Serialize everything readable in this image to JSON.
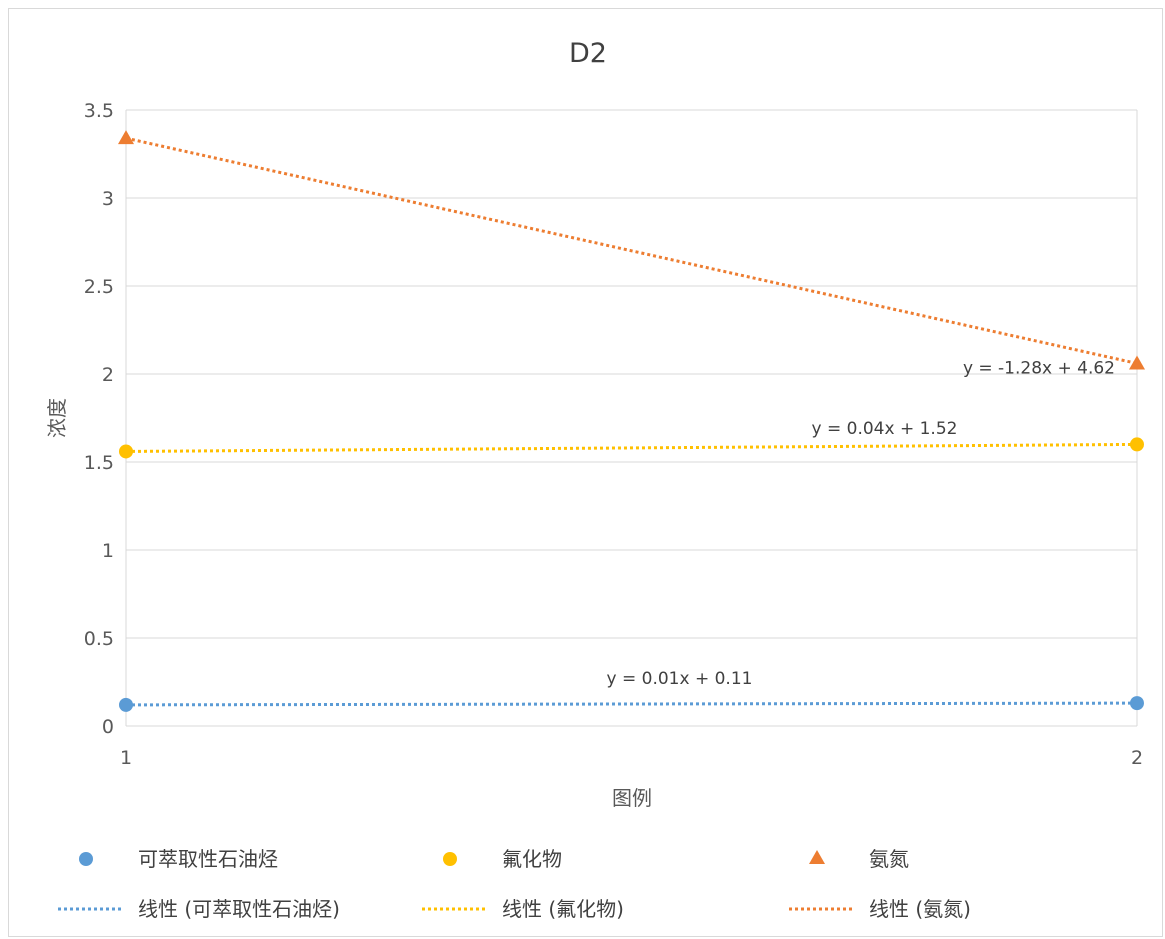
{
  "chart_data": {
    "type": "scatter",
    "title": "D2",
    "xlabel": "图例",
    "ylabel": "浓度",
    "xlim": [
      1,
      2
    ],
    "ylim": [
      0,
      3.5
    ],
    "x_ticks": [
      "1",
      "2"
    ],
    "y_ticks": [
      "0",
      "0.5",
      "1",
      "1.5",
      "2",
      "2.5",
      "3",
      "3.5"
    ],
    "grid": true,
    "legend_position": "bottom",
    "series": [
      {
        "name": "可萃取性石油烃",
        "marker": "circle",
        "color": "#5b9bd5",
        "x": [
          1,
          2
        ],
        "y": [
          0.12,
          0.13
        ],
        "trendline": {
          "name": "线性 (可萃取性石油烃)",
          "equation": "y = 0.01x + 0.11",
          "slope": 0.01,
          "intercept": 0.11
        }
      },
      {
        "name": "氟化物",
        "marker": "circle",
        "color": "#ffc000",
        "x": [
          1,
          2
        ],
        "y": [
          1.56,
          1.6
        ],
        "trendline": {
          "name": "线性 (氟化物)",
          "equation": "y = 0.04x + 1.52",
          "slope": 0.04,
          "intercept": 1.52
        }
      },
      {
        "name": "氨氮",
        "marker": "triangle",
        "color": "#ed7d31",
        "x": [
          1,
          2
        ],
        "y": [
          3.34,
          2.06
        ],
        "trendline": {
          "name": "线性 (氨氮)",
          "equation": "y = -1.28x + 4.62",
          "slope": -1.28,
          "intercept": 4.62
        }
      }
    ]
  }
}
